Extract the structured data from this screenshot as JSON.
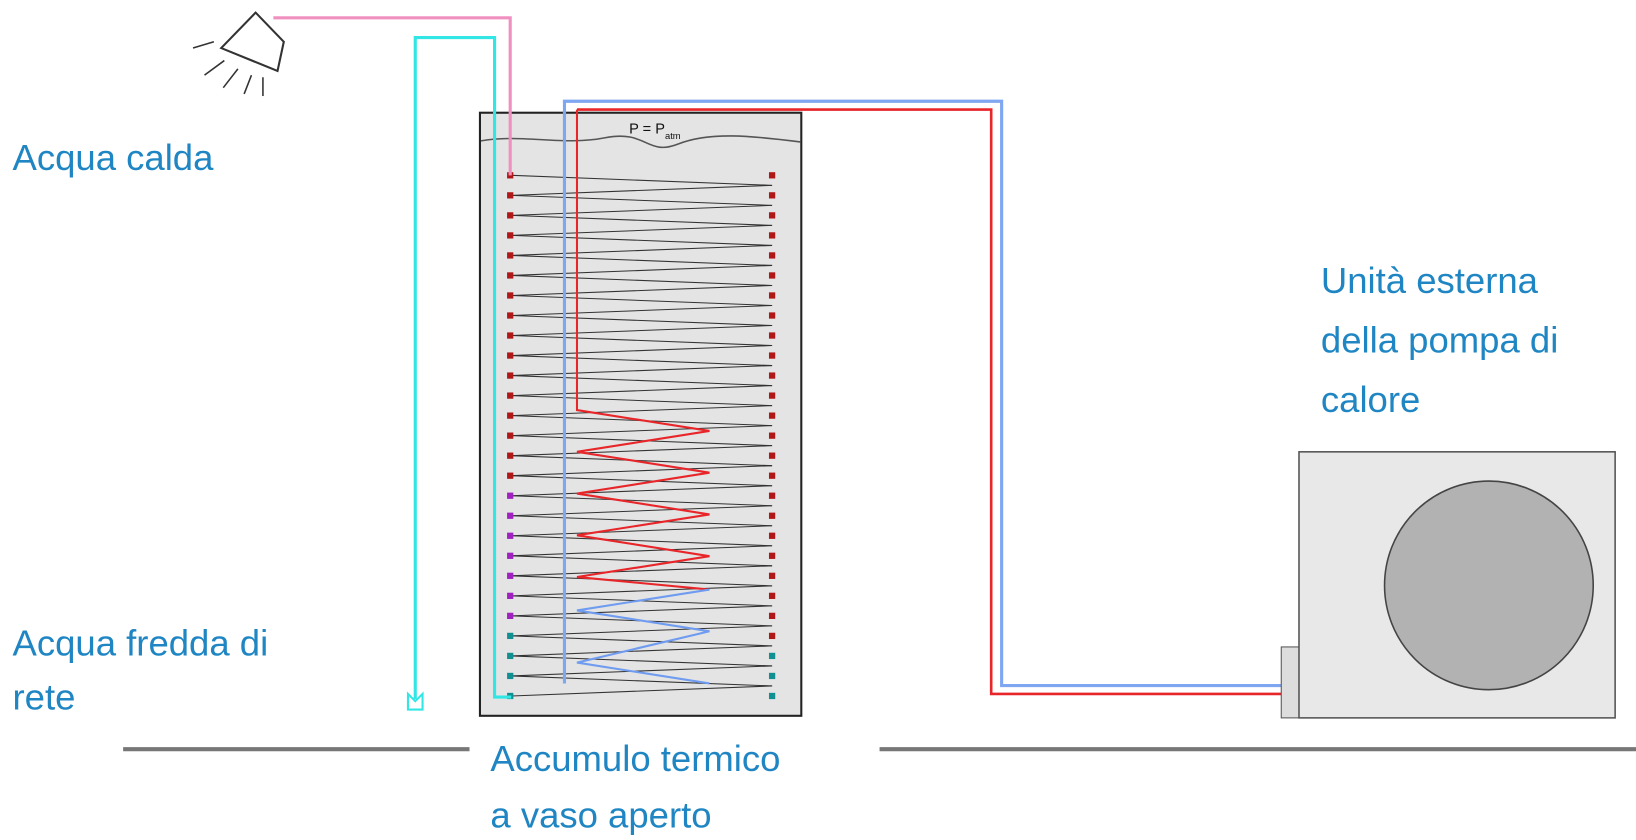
{
  "labels": {
    "hot_water": {
      "lines": [
        "Acqua calda"
      ]
    },
    "cold_water": {
      "lines": [
        "Acqua fredda di",
        "rete"
      ]
    },
    "outdoor_unit": {
      "lines": [
        "Unità esterna",
        "della pompa di",
        "calore"
      ]
    },
    "storage": {
      "lines": [
        "Accumulo termico",
        "a vaso aperto"
      ]
    }
  },
  "tank_pressure": {
    "text": "P = P",
    "subscript": "atm"
  }
}
